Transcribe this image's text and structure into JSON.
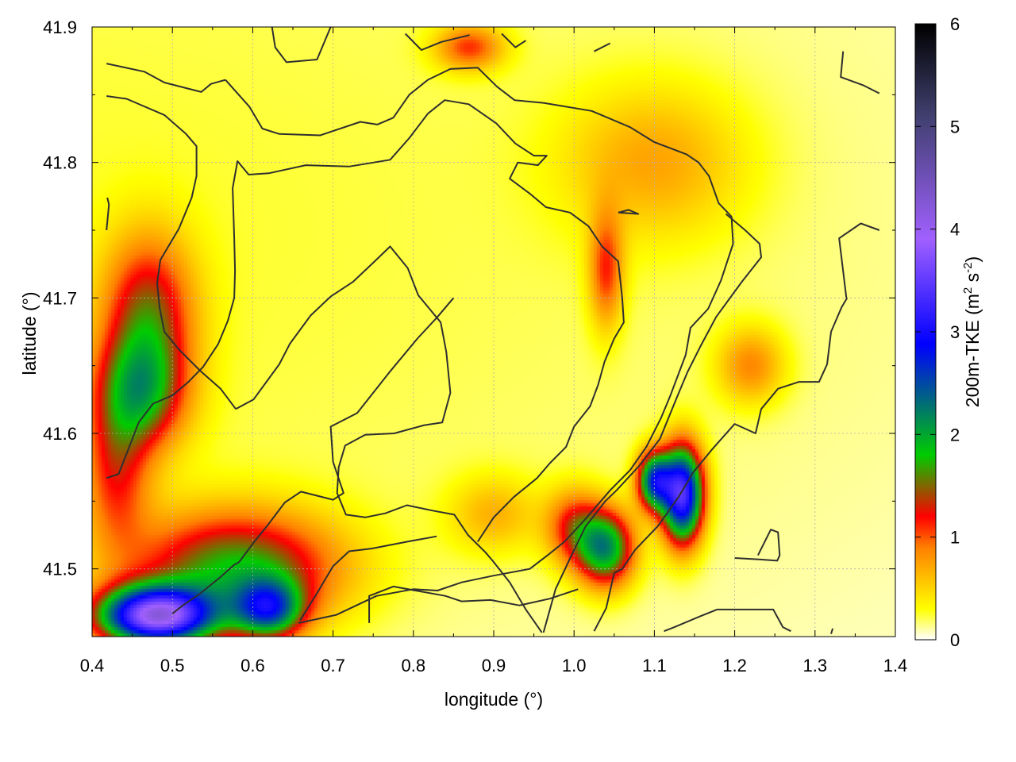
{
  "chart_data": {
    "type": "heatmap",
    "title": "",
    "xlabel": "longitude (°)",
    "ylabel": "latitude (°)",
    "colorbar_label": {
      "main": "200m-TKE (m",
      "sup1": "2",
      "mid": " s",
      "sup2": "-2",
      "end": ")"
    },
    "xlim": [
      0.4,
      1.4
    ],
    "ylim": [
      41.45,
      41.9
    ],
    "clim": [
      0,
      6
    ],
    "x_ticks": [
      0.4,
      0.5,
      0.6,
      0.7,
      0.8,
      0.9,
      1.0,
      1.1,
      1.2,
      1.3,
      1.4
    ],
    "x_tick_labels": [
      "0.4",
      "0.5",
      "0.6",
      "0.7",
      "0.8",
      "0.9",
      "1.0",
      "1.1",
      "1.2",
      "1.3",
      "1.4"
    ],
    "y_ticks": [
      41.5,
      41.6,
      41.7,
      41.8,
      41.9
    ],
    "y_tick_labels": [
      "41.5",
      "41.6",
      "41.7",
      "41.8",
      "41.9"
    ],
    "c_ticks": [
      0,
      1,
      2,
      3,
      4,
      5,
      6
    ],
    "c_tick_labels": [
      "0",
      "1",
      "2",
      "3",
      "4",
      "5",
      "6"
    ],
    "grid": true,
    "colormap": [
      [
        0.0,
        "#ffffff"
      ],
      [
        0.05,
        "#ffff00"
      ],
      [
        0.15,
        "#ff7f00"
      ],
      [
        0.2,
        "#ff0000"
      ],
      [
        0.3,
        "#00cc00"
      ],
      [
        0.48,
        "#0000ff"
      ],
      [
        0.65,
        "#a060ff"
      ],
      [
        0.85,
        "#404070"
      ],
      [
        1.0,
        "#000000"
      ]
    ],
    "tke_features": [
      {
        "lon": 0.48,
        "lat": 41.465,
        "peak": 3.6,
        "sx": 0.05,
        "sy": 0.015
      },
      {
        "lon": 0.58,
        "lat": 41.5,
        "peak": 1.6,
        "sx": 0.09,
        "sy": 0.03
      },
      {
        "lon": 0.62,
        "lat": 41.47,
        "peak": 1.9,
        "sx": 0.03,
        "sy": 0.015
      },
      {
        "lon": 0.46,
        "lat": 41.63,
        "peak": 1.4,
        "sx": 0.04,
        "sy": 0.03
      },
      {
        "lon": 0.47,
        "lat": 41.69,
        "peak": 1.2,
        "sx": 0.04,
        "sy": 0.04
      },
      {
        "lon": 0.43,
        "lat": 41.57,
        "peak": 0.9,
        "sx": 0.03,
        "sy": 0.04
      },
      {
        "lon": 1.135,
        "lat": 41.555,
        "peak": 3.2,
        "sx": 0.018,
        "sy": 0.025
      },
      {
        "lon": 1.1,
        "lat": 41.565,
        "peak": 2.3,
        "sx": 0.015,
        "sy": 0.015
      },
      {
        "lon": 1.04,
        "lat": 41.515,
        "peak": 1.9,
        "sx": 0.025,
        "sy": 0.02
      },
      {
        "lon": 1.0,
        "lat": 41.53,
        "peak": 1.0,
        "sx": 0.025,
        "sy": 0.02
      },
      {
        "lon": 1.04,
        "lat": 41.72,
        "peak": 0.9,
        "sx": 0.015,
        "sy": 0.03
      },
      {
        "lon": 1.1,
        "lat": 41.8,
        "peak": 0.55,
        "sx": 0.08,
        "sy": 0.04
      },
      {
        "lon": 0.87,
        "lat": 41.885,
        "peak": 0.9,
        "sx": 0.03,
        "sy": 0.012
      },
      {
        "lon": 1.22,
        "lat": 41.65,
        "peak": 0.7,
        "sx": 0.03,
        "sy": 0.02
      },
      {
        "lon": 0.9,
        "lat": 41.54,
        "peak": 0.5,
        "sx": 0.04,
        "sy": 0.02
      },
      {
        "lon": 0.3,
        "lat": 41.75,
        "peak": 0.25,
        "sx": 1.0,
        "sy": 0.3
      }
    ],
    "contours": [
      [
        [
          0.418,
          41.873
        ],
        [
          0.465,
          41.867
        ],
        [
          0.49,
          41.859
        ],
        [
          0.536,
          41.852
        ],
        [
          0.548,
          41.858
        ],
        [
          0.566,
          41.861
        ]
      ],
      [
        [
          0.566,
          41.861
        ],
        [
          0.596,
          41.841
        ],
        [
          0.612,
          41.825
        ],
        [
          0.633,
          41.821
        ],
        [
          0.684,
          41.82
        ],
        [
          0.734,
          41.83
        ],
        [
          0.755,
          41.828
        ],
        [
          0.775,
          41.833
        ],
        [
          0.795,
          41.85
        ],
        [
          0.818,
          41.861
        ],
        [
          0.846,
          41.869
        ],
        [
          0.88,
          41.87
        ],
        [
          0.904,
          41.856
        ],
        [
          0.926,
          41.846
        ],
        [
          0.962,
          41.844
        ],
        [
          1.022,
          41.838
        ],
        [
          1.07,
          41.826
        ],
        [
          1.1,
          41.815
        ],
        [
          1.14,
          41.806
        ],
        [
          1.155,
          41.8
        ],
        [
          1.168,
          41.79
        ],
        [
          1.18,
          41.77
        ],
        [
          1.196,
          41.76
        ],
        [
          1.198,
          41.74
        ],
        [
          1.183,
          41.713
        ],
        [
          1.167,
          41.692
        ],
        [
          1.145,
          41.678
        ],
        [
          1.139,
          41.658
        ],
        [
          1.12,
          41.628
        ],
        [
          1.108,
          41.611
        ],
        [
          1.09,
          41.59
        ],
        [
          1.07,
          41.573
        ],
        [
          1.045,
          41.558
        ],
        [
          1.013,
          41.536
        ],
        [
          0.988,
          41.52
        ],
        [
          0.967,
          41.51
        ],
        [
          0.945,
          41.5
        ],
        [
          0.9,
          41.495
        ],
        [
          0.86,
          41.49
        ],
        [
          0.83,
          41.484
        ],
        [
          0.8,
          41.485
        ],
        [
          0.754,
          41.48
        ],
        [
          0.704,
          41.466
        ],
        [
          0.657,
          41.46
        ]
      ],
      [
        [
          0.418,
          41.849
        ],
        [
          0.443,
          41.847
        ],
        [
          0.49,
          41.835
        ],
        [
          0.517,
          41.821
        ],
        [
          0.53,
          41.812
        ],
        [
          0.53,
          41.79
        ],
        [
          0.524,
          41.774
        ],
        [
          0.508,
          41.751
        ],
        [
          0.485,
          41.728
        ],
        [
          0.481,
          41.711
        ],
        [
          0.484,
          41.693
        ],
        [
          0.49,
          41.675
        ],
        [
          0.508,
          41.662
        ],
        [
          0.535,
          41.646
        ],
        [
          0.56,
          41.633
        ],
        [
          0.579,
          41.618
        ]
      ],
      [
        [
          0.579,
          41.618
        ],
        [
          0.601,
          41.625
        ],
        [
          0.633,
          41.651
        ],
        [
          0.646,
          41.666
        ],
        [
          0.672,
          41.687
        ],
        [
          0.697,
          41.701
        ],
        [
          0.725,
          41.712
        ],
        [
          0.75,
          41.726
        ],
        [
          0.771,
          41.738
        ],
        [
          0.793,
          41.722
        ],
        [
          0.806,
          41.702
        ],
        [
          0.834,
          41.682
        ],
        [
          0.841,
          41.66
        ],
        [
          0.846,
          41.63
        ],
        [
          0.836,
          41.608
        ],
        [
          0.813,
          41.606
        ],
        [
          0.776,
          41.6
        ],
        [
          0.74,
          41.599
        ],
        [
          0.715,
          41.591
        ],
        [
          0.707,
          41.575
        ],
        [
          0.705,
          41.556
        ],
        [
          0.716,
          41.54
        ],
        [
          0.74,
          41.538
        ],
        [
          0.765,
          41.541
        ],
        [
          0.792,
          41.547
        ],
        [
          0.824,
          41.543
        ],
        [
          0.851,
          41.54
        ],
        [
          0.868,
          41.525
        ],
        [
          0.89,
          41.512
        ],
        [
          0.9,
          41.505
        ],
        [
          0.92,
          41.49
        ],
        [
          0.94,
          41.47
        ],
        [
          0.96,
          41.453
        ]
      ],
      [
        [
          0.962,
          41.453
        ],
        [
          0.977,
          41.485
        ],
        [
          0.996,
          41.509
        ],
        [
          1.014,
          41.531
        ],
        [
          1.039,
          41.55
        ],
        [
          1.053,
          41.558
        ],
        [
          1.081,
          41.576
        ],
        [
          1.107,
          41.596
        ],
        [
          1.127,
          41.625
        ],
        [
          1.141,
          41.645
        ],
        [
          1.158,
          41.665
        ],
        [
          1.177,
          41.686
        ],
        [
          1.209,
          41.712
        ],
        [
          1.233,
          41.73
        ],
        [
          1.231,
          41.74
        ],
        [
          1.213,
          41.75
        ],
        [
          1.189,
          41.762
        ]
      ],
      [
        [
          0.419,
          41.774
        ],
        [
          0.421,
          41.769
        ],
        [
          0.418,
          41.75
        ]
      ],
      [
        [
          0.418,
          41.567
        ],
        [
          0.433,
          41.57
        ],
        [
          0.445,
          41.588
        ],
        [
          0.458,
          41.608
        ],
        [
          0.476,
          41.622
        ],
        [
          0.5,
          41.628
        ],
        [
          0.52,
          41.638
        ],
        [
          0.538,
          41.649
        ],
        [
          0.557,
          41.666
        ],
        [
          0.569,
          41.683
        ],
        [
          0.577,
          41.7
        ],
        [
          0.578,
          41.72
        ],
        [
          0.577,
          41.744
        ],
        [
          0.575,
          41.781
        ],
        [
          0.581,
          41.801
        ],
        [
          0.595,
          41.791
        ],
        [
          0.62,
          41.792
        ],
        [
          0.666,
          41.798
        ],
        [
          0.72,
          41.797
        ],
        [
          0.771,
          41.802
        ],
        [
          0.795,
          41.818
        ],
        [
          0.818,
          41.836
        ],
        [
          0.839,
          41.846
        ],
        [
          0.869,
          41.843
        ],
        [
          0.903,
          41.829
        ],
        [
          0.927,
          41.814
        ],
        [
          0.95,
          41.805
        ],
        [
          0.966,
          41.805
        ],
        [
          0.955,
          41.798
        ],
        [
          0.93,
          41.8
        ],
        [
          0.92,
          41.788
        ],
        [
          0.945,
          41.777
        ],
        [
          0.965,
          41.767
        ],
        [
          0.995,
          41.763
        ],
        [
          1.018,
          41.753
        ],
        [
          1.035,
          41.738
        ],
        [
          1.055,
          41.727
        ],
        [
          1.06,
          41.7
        ],
        [
          1.062,
          41.682
        ],
        [
          1.05,
          41.67
        ],
        [
          1.038,
          41.653
        ],
        [
          1.03,
          41.636
        ],
        [
          1.02,
          41.62
        ],
        [
          1.0,
          41.605
        ],
        [
          0.99,
          41.59
        ],
        [
          0.97,
          41.578
        ],
        [
          0.954,
          41.567
        ],
        [
          0.925,
          41.553
        ],
        [
          0.9,
          41.538
        ],
        [
          0.88,
          41.52
        ]
      ],
      [
        [
          0.5,
          41.467
        ],
        [
          0.513,
          41.473
        ],
        [
          0.535,
          41.482
        ],
        [
          0.56,
          41.494
        ],
        [
          0.577,
          41.503
        ],
        [
          0.583,
          41.505
        ],
        [
          0.602,
          41.52
        ],
        [
          0.617,
          41.531
        ],
        [
          0.64,
          41.549
        ],
        [
          0.66,
          41.557
        ],
        [
          0.7,
          41.551
        ],
        [
          0.713,
          41.556
        ],
        [
          0.7,
          41.579
        ],
        [
          0.697,
          41.605
        ],
        [
          0.73,
          41.615
        ],
        [
          0.77,
          41.645
        ],
        [
          0.805,
          41.67
        ],
        [
          0.83,
          41.686
        ],
        [
          0.85,
          41.7
        ]
      ],
      [
        [
          0.659,
          41.462
        ],
        [
          0.68,
          41.482
        ],
        [
          0.7,
          41.502
        ],
        [
          0.72,
          41.513
        ],
        [
          0.748,
          41.515
        ],
        [
          0.792,
          41.52
        ],
        [
          0.829,
          41.524
        ]
      ],
      [
        [
          0.745,
          41.46
        ],
        [
          0.745,
          41.48
        ],
        [
          0.775,
          41.487
        ],
        [
          0.84,
          41.48
        ],
        [
          0.86,
          41.476
        ],
        [
          0.896,
          41.477
        ],
        [
          0.932,
          41.473
        ],
        [
          0.97,
          41.478
        ],
        [
          1.005,
          41.485
        ]
      ],
      [
        [
          1.025,
          41.454
        ],
        [
          1.04,
          41.471
        ],
        [
          1.05,
          41.497
        ],
        [
          1.06,
          41.5
        ],
        [
          1.076,
          41.514
        ],
        [
          1.105,
          41.532
        ],
        [
          1.13,
          41.553
        ],
        [
          1.148,
          41.571
        ],
        [
          1.173,
          41.589
        ],
        [
          1.2,
          41.607
        ],
        [
          1.226,
          41.6
        ],
        [
          1.233,
          41.618
        ],
        [
          1.254,
          41.633
        ],
        [
          1.28,
          41.638
        ],
        [
          1.305,
          41.638
        ],
        [
          1.315,
          41.651
        ],
        [
          1.32,
          41.675
        ],
        [
          1.333,
          41.693
        ],
        [
          1.34,
          41.7
        ]
      ],
      [
        [
          1.112,
          41.454
        ],
        [
          1.125,
          41.457
        ],
        [
          1.157,
          41.465
        ],
        [
          1.178,
          41.47
        ],
        [
          1.248,
          41.47
        ],
        [
          1.26,
          41.457
        ],
        [
          1.27,
          41.454
        ]
      ],
      [
        [
          1.2,
          41.508
        ],
        [
          1.23,
          41.507
        ],
        [
          1.253,
          41.506
        ],
        [
          1.256,
          41.51
        ],
        [
          1.254,
          41.527
        ],
        [
          1.245,
          41.529
        ],
        [
          1.229,
          41.51
        ]
      ],
      [
        [
          1.339,
          41.7
        ],
        [
          1.33,
          41.744
        ],
        [
          1.357,
          41.755
        ],
        [
          1.38,
          41.75
        ]
      ],
      [
        [
          0.624,
          41.9
        ],
        [
          0.628,
          41.885
        ],
        [
          0.642,
          41.874
        ],
        [
          0.68,
          41.876
        ],
        [
          0.697,
          41.9
        ]
      ],
      [
        [
          0.79,
          41.895
        ],
        [
          0.81,
          41.883
        ],
        [
          0.835,
          41.889
        ],
        [
          0.87,
          41.894
        ]
      ],
      [
        [
          0.91,
          41.895
        ],
        [
          0.927,
          41.885
        ],
        [
          0.94,
          41.89
        ]
      ],
      [
        [
          1.025,
          41.882
        ],
        [
          1.045,
          41.888
        ]
      ],
      [
        [
          1.335,
          41.882
        ],
        [
          1.332,
          41.863
        ],
        [
          1.36,
          41.857
        ],
        [
          1.38,
          41.851
        ]
      ],
      [
        [
          1.32,
          41.452
        ],
        [
          1.322,
          41.456
        ]
      ],
      [
        [
          1.055,
          41.763
        ],
        [
          1.068,
          41.765
        ],
        [
          1.08,
          41.762
        ],
        [
          1.055,
          41.763
        ]
      ]
    ]
  }
}
